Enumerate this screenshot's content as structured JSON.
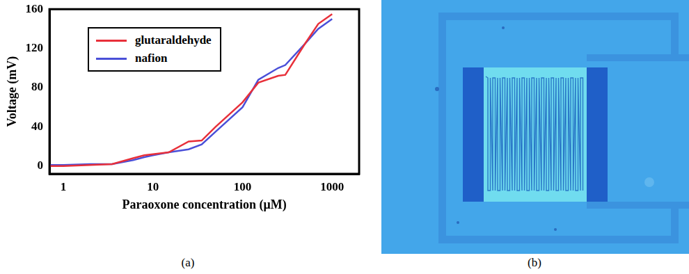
{
  "chart_data": {
    "type": "line",
    "x_label": "Paraoxone concentration (μM)",
    "y_label": "Voltage (mV)",
    "x": [
      0.7,
      1,
      2,
      3.5,
      6,
      8,
      10,
      15,
      25,
      35,
      50,
      100,
      150,
      250,
      300,
      500,
      700,
      1000
    ],
    "series": [
      {
        "name": "glutaraldehyde",
        "color": "#e8303a",
        "values": [
          0,
          0,
          1,
          2,
          8,
          11,
          12,
          14,
          25,
          26,
          40,
          65,
          85,
          92,
          93,
          125,
          145,
          155
        ]
      },
      {
        "name": "nafion",
        "color": "#4a4fd8",
        "values": [
          1,
          1,
          2,
          2,
          6,
          9,
          11,
          14,
          17,
          22,
          35,
          60,
          88,
          100,
          103,
          125,
          140,
          150
        ]
      }
    ],
    "log": "x",
    "xlim": [
      0.7,
      2000
    ],
    "xticks": [
      1,
      10,
      100,
      1000
    ],
    "ylim": [
      -8,
      160
    ],
    "yticks": [
      0,
      40,
      80,
      120,
      160
    ],
    "grid": false,
    "legend": "upper left"
  },
  "panel_labels": [
    "(a)",
    "(b)"
  ]
}
